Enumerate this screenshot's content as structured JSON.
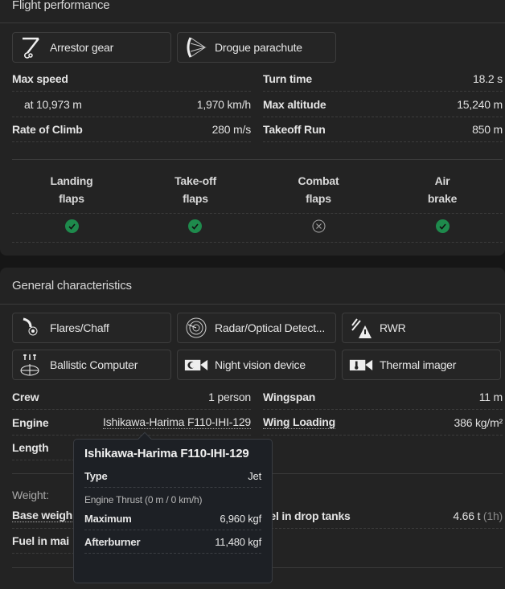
{
  "flight_performance": {
    "title": "Flight performance",
    "features": [
      {
        "label": "Arrestor gear",
        "icon": "arrestor-gear-icon"
      },
      {
        "label": "Drogue parachute",
        "icon": "parachute-icon"
      }
    ],
    "left_rows": [
      {
        "label": "Max speed",
        "value": ""
      },
      {
        "label": "at 10,973 m",
        "value": "1,970 km/h"
      },
      {
        "label": "Rate of Climb",
        "value": "280 m/s"
      }
    ],
    "right_rows": [
      {
        "label": "Turn time",
        "value": "18.2 s"
      },
      {
        "label": "Max altitude",
        "value": "15,240 m"
      },
      {
        "label": "Takeoff Run",
        "value": "850 m"
      }
    ],
    "flaps": [
      {
        "line1": "Landing",
        "line2": "flaps",
        "available": true
      },
      {
        "line1": "Take-off",
        "line2": "flaps",
        "available": true
      },
      {
        "line1": "Combat",
        "line2": "flaps",
        "available": false
      },
      {
        "line1": "Air",
        "line2": "brake",
        "available": true
      }
    ],
    "check_color": "#1e8a4c"
  },
  "general": {
    "title": "General characteristics",
    "features": [
      {
        "label": "Flares/Chaff",
        "icon": "flares-icon"
      },
      {
        "label": "Radar/Optical Detect...",
        "icon": "radar-icon"
      },
      {
        "label": "RWR",
        "icon": "rwr-warning-icon"
      },
      {
        "label": "Ballistic Computer",
        "icon": "ballistic-computer-icon"
      },
      {
        "label": "Night vision device",
        "icon": "night-vision-camera-icon"
      },
      {
        "label": "Thermal imager",
        "icon": "thermal-camera-icon"
      }
    ],
    "left_rows": [
      {
        "label": "Crew",
        "value": "1 person"
      },
      {
        "label": "Engine",
        "value": "Ishikawa-Harima F110-IHI-129"
      },
      {
        "label": "Length",
        "value": ""
      }
    ],
    "right_rows": [
      {
        "label": "Wingspan",
        "value": "11 m"
      },
      {
        "label": "Wing Loading",
        "value": "386 kg/m²"
      }
    ],
    "weight_label": "Weight:",
    "weight_left": [
      {
        "label": "Base weigh"
      },
      {
        "label": "Fuel in mai"
      }
    ],
    "weight_right": [
      {
        "label": "uel in drop tanks",
        "value": "4.66 t",
        "extra": "(1h)"
      }
    ]
  },
  "tooltip": {
    "title": "Ishikawa-Harima F110-IHI-129",
    "type_label": "Type",
    "type_value": "Jet",
    "thrust_label": "Engine Thrust (0 m / 0 km/h)",
    "rows": [
      {
        "label": "Maximum",
        "value": "6,960 kgf"
      },
      {
        "label": "Afterburner",
        "value": "11,480 kgf"
      }
    ]
  }
}
